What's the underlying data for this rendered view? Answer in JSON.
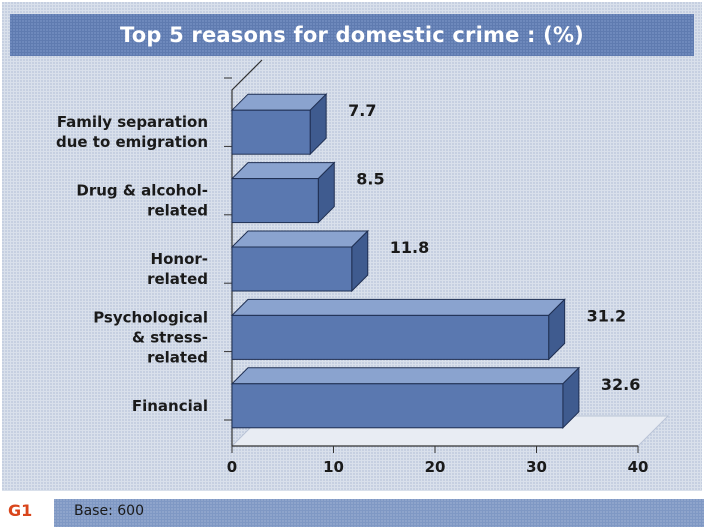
{
  "title": "Top 5 reasons for domestic crime : (%)",
  "source_tag": "G1",
  "base_note": "Base: 600",
  "colors": {
    "bar_front": "#5a78b0",
    "bar_top": "#8aa3cf",
    "bar_side": "#3f5b8f",
    "floor": "#e8ecf3",
    "title_bg": "#5f7bb0",
    "footer_bg": "#7f98c4",
    "tag": "#d9461c"
  },
  "chart_data": {
    "type": "bar",
    "orientation": "horizontal",
    "style": "3d",
    "title": "Top 5 reasons for domestic crime : (%)",
    "categories": [
      [
        "Family separation",
        "due to emigration"
      ],
      [
        "Drug &  alcohol-",
        "related"
      ],
      [
        "Honor-",
        "related"
      ],
      [
        "Psychological",
        "& stress-",
        "related"
      ],
      [
        "Financial"
      ]
    ],
    "values": [
      7.7,
      8.5,
      11.8,
      31.2,
      32.6
    ],
    "value_labels": [
      "7.7",
      "8.5",
      "11.8",
      "31.2",
      "32.6"
    ],
    "xlim": [
      0,
      40
    ],
    "xticks": [
      0,
      10,
      20,
      30,
      40
    ],
    "xtick_labels": [
      "0",
      "10",
      "20",
      "30",
      "40"
    ],
    "xlabel": "",
    "ylabel": "",
    "grid": false,
    "legend": "none"
  }
}
